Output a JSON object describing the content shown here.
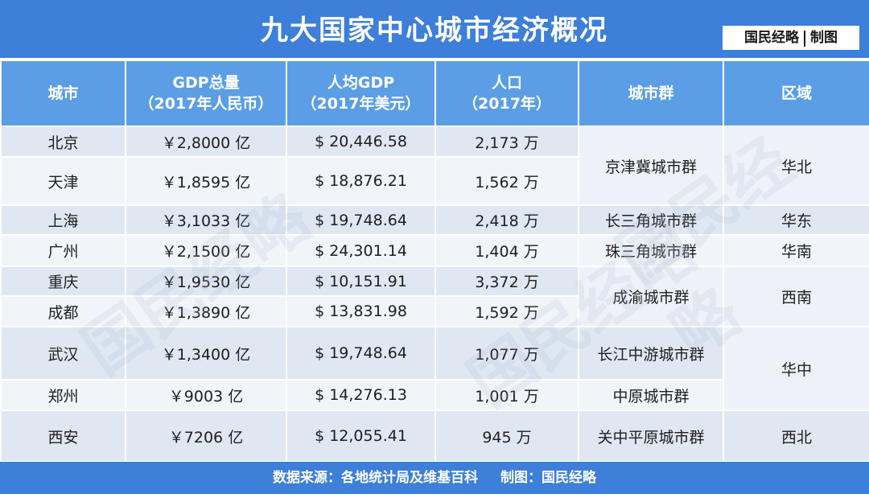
{
  "title": "九大国家中心城市经济概况",
  "credit": {
    "left": "国民经略",
    "right": "制图"
  },
  "headers": [
    {
      "line1": "城市",
      "line2": ""
    },
    {
      "line1": "GDP总量",
      "line2": "（2017年人民币）"
    },
    {
      "line1": "人均GDP",
      "line2": "（2017年美元）"
    },
    {
      "line1": "人口",
      "line2": "（2017年）"
    },
    {
      "line1": "城市群",
      "line2": ""
    },
    {
      "line1": "区域",
      "line2": ""
    }
  ],
  "rows": [
    {
      "city": "北京",
      "gdp": "￥2,8000 亿",
      "per_capita": "$ 20,446.58",
      "population": "2,173 万"
    },
    {
      "city": "天津",
      "gdp": "￥1,8595 亿",
      "per_capita": "$ 18,876.21",
      "population": "1,562 万"
    },
    {
      "city": "上海",
      "gdp": "￥3,1033 亿",
      "per_capita": "$ 19,748.64",
      "population": "2,418 万"
    },
    {
      "city": "广州",
      "gdp": "￥2,1500 亿",
      "per_capita": "$ 24,301.14",
      "population": "1,404 万"
    },
    {
      "city": "重庆",
      "gdp": "￥1,9530 亿",
      "per_capita": "$ 10,151.91",
      "population": "3,372 万"
    },
    {
      "city": "成都",
      "gdp": "￥1,3890 亿",
      "per_capita": "$ 13,831.98",
      "population": "1,592 万"
    },
    {
      "city": "武汉",
      "gdp": "￥1,3400 亿",
      "per_capita": "$ 19,748.64",
      "population": "1,077 万"
    },
    {
      "city": "郑州",
      "gdp": "￥9003 亿",
      "per_capita": "$ 14,276.13",
      "population": "1,001 万"
    },
    {
      "city": "西安",
      "gdp": "￥7206 亿",
      "per_capita": "$ 12,055.41",
      "population": "945 万"
    }
  ],
  "clusters": [
    "京津冀城市群",
    "长三角城市群",
    "珠三角城市群",
    "成渝城市群",
    "长江中游城市群",
    "中原城市群",
    "关中平原城市群"
  ],
  "regions": [
    "华北",
    "华东",
    "华南",
    "西南",
    "华中",
    "西北"
  ],
  "footer": {
    "source": "数据来源：各地统计局及维基百科",
    "credit": "制图：国民经略"
  },
  "watermark": "国民经略"
}
